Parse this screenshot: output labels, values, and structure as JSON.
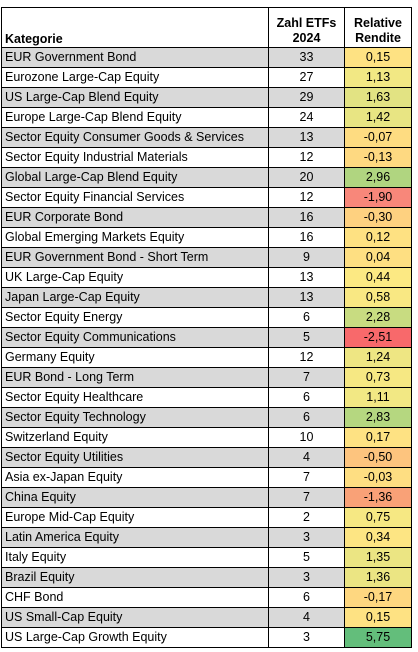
{
  "table": {
    "headers": {
      "category": "Kategorie",
      "count_line1": "Zahl ETFs",
      "count_line2": "2024",
      "return_line1": "Relative",
      "return_line2": "Rendite"
    },
    "rows": [
      {
        "category": "EUR Government Bond",
        "count": "33",
        "return": "0,15",
        "color": "#fee283"
      },
      {
        "category": "Eurozone Large-Cap Equity",
        "count": "27",
        "return": "1,13",
        "color": "#f2e884"
      },
      {
        "category": "US Large-Cap Blend Equity",
        "count": "29",
        "return": "1,63",
        "color": "#e2e383"
      },
      {
        "category": "Europe Large-Cap Blend Equity",
        "count": "24",
        "return": "1,42",
        "color": "#e8e583"
      },
      {
        "category": "Sector Equity Consumer Goods & Services",
        "count": "13",
        "return": "-0,07",
        "color": "#fedc81"
      },
      {
        "category": "Sector Equity Industrial Materials",
        "count": "12",
        "return": "-0,13",
        "color": "#fed981"
      },
      {
        "category": "Global Large-Cap Blend Equity",
        "count": "20",
        "return": "2,96",
        "color": "#b0d580"
      },
      {
        "category": "Sector Equity Financial Services",
        "count": "12",
        "return": "-1,90",
        "color": "#f8877a"
      },
      {
        "category": "EUR Corporate Bond",
        "count": "16",
        "return": "-0,30",
        "color": "#fed180"
      },
      {
        "category": "Global Emerging Markets Equity",
        "count": "16",
        "return": "0,12",
        "color": "#fee182"
      },
      {
        "category": "EUR Government Bond - Short Term",
        "count": "9",
        "return": "0,04",
        "color": "#fedf82"
      },
      {
        "category": "UK Large-Cap Equity",
        "count": "13",
        "return": "0,44",
        "color": "#fce983"
      },
      {
        "category": "Japan Large-Cap Equity",
        "count": "13",
        "return": "0,58",
        "color": "#f9e883"
      },
      {
        "category": "Sector Equity Energy",
        "count": "6",
        "return": "2,28",
        "color": "#c8dc81"
      },
      {
        "category": "Sector Equity Communications",
        "count": "5",
        "return": "-2,51",
        "color": "#f8696b"
      },
      {
        "category": "Germany Equity",
        "count": "12",
        "return": "1,24",
        "color": "#eee683"
      },
      {
        "category": "EUR Bond - Long Term",
        "count": "7",
        "return": "0,73",
        "color": "#f6e883"
      },
      {
        "category": "Sector Equity Healthcare",
        "count": "6",
        "return": "1,11",
        "color": "#f2e884"
      },
      {
        "category": "Sector Equity Technology",
        "count": "6",
        "return": "2,83",
        "color": "#b5d780"
      },
      {
        "category": "Switzerland Equity",
        "count": "10",
        "return": "0,17",
        "color": "#fee283"
      },
      {
        "category": "Sector Equity Utilities",
        "count": "4",
        "return": "-0,50",
        "color": "#fdc47e"
      },
      {
        "category": "Asia ex-Japan Equity",
        "count": "7",
        "return": "-0,03",
        "color": "#fede82"
      },
      {
        "category": "China Equity",
        "count": "7",
        "return": "-1,36",
        "color": "#f9a177"
      },
      {
        "category": "Europe Mid-Cap Equity",
        "count": "2",
        "return": "0,75",
        "color": "#f6e883"
      },
      {
        "category": "Latin America Equity",
        "count": "3",
        "return": "0,34",
        "color": "#fde583"
      },
      {
        "category": "Italy Equity",
        "count": "5",
        "return": "1,35",
        "color": "#ebe583"
      },
      {
        "category": "Brazil Equity",
        "count": "3",
        "return": "1,36",
        "color": "#ebe583"
      },
      {
        "category": "CHF Bond",
        "count": "6",
        "return": "-0,17",
        "color": "#fed780"
      },
      {
        "category": "US Small-Cap Equity",
        "count": "4",
        "return": "0,15",
        "color": "#fee283"
      },
      {
        "category": "US Large-Cap Growth Equity",
        "count": "3",
        "return": "5,75",
        "color": "#63be7b"
      }
    ]
  }
}
